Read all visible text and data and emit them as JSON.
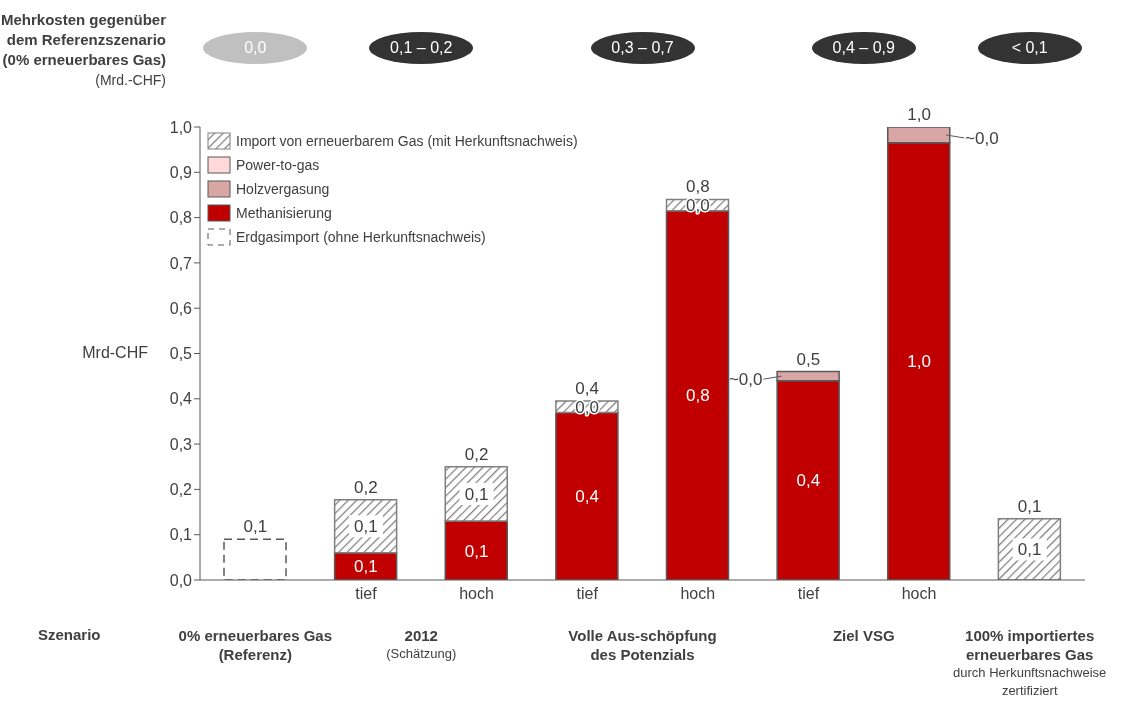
{
  "chart_data": {
    "type": "bar",
    "stacked": true,
    "ylabel": "Mrd-CHF",
    "legend": "top left",
    "grid": false,
    "categories": [
      null,
      "tief",
      "hoch",
      "tief",
      "hoch",
      "tief",
      "hoch",
      null
    ],
    "ylim": [
      0,
      1
    ],
    "yticks": [
      {
        "value": 0,
        "label": "0,0"
      },
      {
        "value": 0.1,
        "label": "0,1"
      },
      {
        "value": 0.2,
        "label": "0,2"
      },
      {
        "value": 0.3,
        "label": "0,3"
      },
      {
        "value": 0.4,
        "label": "0,4"
      },
      {
        "value": 0.5,
        "label": "0,5"
      },
      {
        "value": 0.6,
        "label": "0,6"
      },
      {
        "value": 0.7,
        "label": "0,7"
      },
      {
        "value": 0.8,
        "label": "0,8"
      },
      {
        "value": 0.9,
        "label": "0,9"
      },
      {
        "value": 1,
        "label": "1,0"
      }
    ],
    "series": [
      {
        "name": "Erdgasimport (ohne Herkunftsnachweis)",
        "color": "#595959",
        "line_style": "dashed",
        "values": [
          0.09,
          null,
          null,
          null,
          null,
          null,
          null,
          null
        ]
      },
      {
        "name": "Methanisierung",
        "color": "#c00000",
        "values": [
          null,
          0.06,
          0.13,
          0.37,
          0.815,
          0.44,
          0.965,
          null
        ],
        "value_labels": [
          null,
          "0,1",
          "0,1",
          "0,4",
          "0,8",
          "0,4",
          "1,0",
          null
        ]
      },
      {
        "name": "Holzvergasung",
        "color": "#d9a6a6",
        "values": [
          null,
          null,
          null,
          null,
          null,
          0.02,
          0.035,
          null
        ],
        "value_labels": [
          null,
          null,
          null,
          null,
          null,
          "~0,0",
          "~0,0",
          null
        ]
      },
      {
        "name": "Power-to-gas",
        "color": "#ffd9d9",
        "values": [
          null,
          null,
          null,
          null,
          null,
          null,
          null,
          null
        ]
      },
      {
        "name": "Import von erneuerbarem Gas (mit Herkunftsnachweis)",
        "color": "#808080",
        "values": [
          null,
          0.117,
          0.12,
          0.025,
          0.025,
          null,
          null,
          0.135
        ],
        "value_labels": [
          null,
          "0,1",
          "0,1",
          "0,0",
          "0,0",
          null,
          null,
          "0,1"
        ]
      }
    ],
    "totals": [
      "0,1",
      "0,2",
      "0,2",
      "0,4",
      "0,8",
      "0,5",
      "1,0",
      "0,1"
    ],
    "annotations": [
      "Mehrkosten gegenüber\ndem Referenzszenario\n(0% erneuerbares Gas)",
      "(Mrd.-CHF)",
      "0,0",
      "0,1 – 0,2",
      "0,3 – 0,7",
      "0,4 – 0,9",
      "< 0,1",
      "Szenario",
      "0% erneuerbares Gas\n(Referenz)",
      "2012",
      "Volle Aus-schöpfung\ndes Potenzials",
      "Ziel VSG",
      "100% importiertes\nerneuerbares Gas",
      "(Schätzung)",
      "durch Herkunftsnachweise\nzertifiziert"
    ]
  }
}
